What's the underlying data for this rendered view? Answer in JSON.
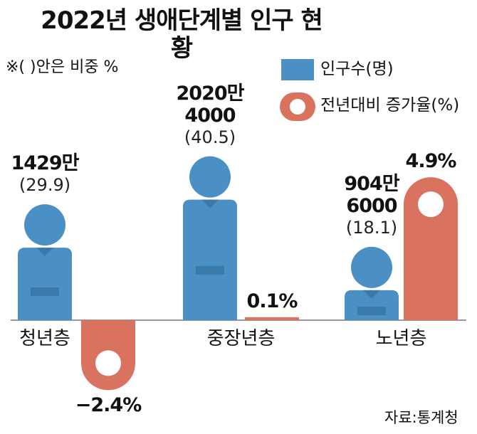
{
  "title": "2022년 생애단계별 인구 현황",
  "note": "※(  )안은 비중 %",
  "source": "자료:통계청",
  "chart_data": {
    "type": "bar",
    "categories": [
      "청년층",
      "중장년층",
      "노년층"
    ],
    "series": [
      {
        "name": "인구수(명)",
        "color": "#4a90c4",
        "values": [
          14290000,
          20204000,
          9046000
        ],
        "value_labels": [
          "1429만",
          "2020만\n4000",
          "904만\n6000"
        ]
      },
      {
        "name": "전년대비 증가율(%)",
        "color": "#d9735f",
        "values": [
          -2.4,
          0.1,
          4.9
        ],
        "value_labels": [
          "−2.4%",
          "0.1%",
          "4.9%"
        ]
      }
    ],
    "shares": {
      "values": [
        29.9,
        40.5,
        18.1
      ],
      "value_labels": [
        "(29.9)",
        "(40.5)",
        "(18.1)"
      ]
    }
  }
}
